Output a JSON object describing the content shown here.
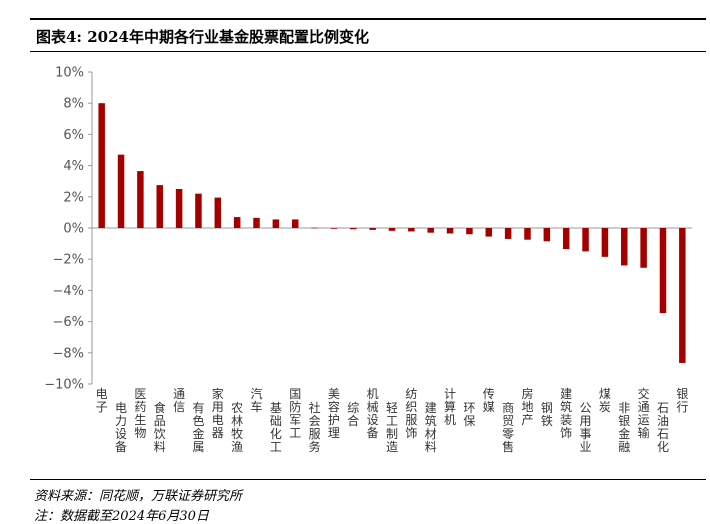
{
  "header": {
    "title": "图表4:  2024年中期各行业基金股票配置比例变化"
  },
  "footer": {
    "source": "资料来源：同花顺，万联证券研究所",
    "note": "注：数据截至2024年6月30日"
  },
  "chart_data": {
    "type": "bar",
    "title": "",
    "xlabel": "",
    "ylabel": "",
    "ylim": [
      -10,
      10
    ],
    "yticks": [
      10,
      8,
      6,
      4,
      2,
      0,
      -2,
      -4,
      -6,
      -8,
      -10
    ],
    "ytick_labels": [
      "10%",
      "8%",
      "6%",
      "4%",
      "2%",
      "0%",
      "−2%",
      "−4%",
      "−6%",
      "−8%",
      "−10%"
    ],
    "grid": false,
    "legend": "none",
    "bar_color": "#A50000",
    "categories": [
      "电子",
      "电力设备",
      "医药生物",
      "食品饮料",
      "通信",
      "有色金属",
      "家用电器",
      "农林牧渔",
      "汽车",
      "基础化工",
      "国防军工",
      "社会服务",
      "美容护理",
      "综合",
      "机械设备",
      "轻工制造",
      "纺织服饰",
      "建筑材料",
      "计算机",
      "环保",
      "传媒",
      "商贸零售",
      "房地产",
      "钢铁",
      "建筑装饰",
      "公用事业",
      "煤炭",
      "非银金融",
      "交通运输",
      "石油石化",
      "银行"
    ],
    "values": [
      8.0,
      4.7,
      3.65,
      2.75,
      2.5,
      2.2,
      1.95,
      0.7,
      0.65,
      0.55,
      0.55,
      0.02,
      -0.05,
      -0.08,
      -0.12,
      -0.18,
      -0.22,
      -0.3,
      -0.35,
      -0.4,
      -0.55,
      -0.7,
      -0.75,
      -0.85,
      -1.35,
      -1.5,
      -1.85,
      -2.4,
      -2.55,
      -5.45,
      -8.65
    ]
  }
}
